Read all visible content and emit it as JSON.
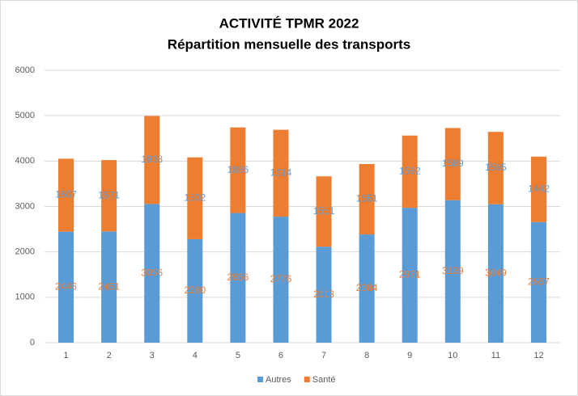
{
  "chart_data": {
    "type": "stacked_bar",
    "title": [
      "ACTIVITÉ TPMR 2022",
      "Répartition mensuelle des transports"
    ],
    "categories": [
      "1",
      "2",
      "3",
      "4",
      "5",
      "6",
      "7",
      "8",
      "9",
      "10",
      "11",
      "12"
    ],
    "series": [
      {
        "name": "Autres",
        "color": "#5b9bd5",
        "values": [
          2446,
          2451,
          3056,
          2280,
          2856,
          2776,
          2113,
          2384,
          2971,
          3139,
          3049,
          2657
        ]
      },
      {
        "name": "Santé",
        "color": "#ed7d31",
        "values": [
          1607,
          1571,
          1938,
          1802,
          1886,
          1914,
          1551,
          1551,
          1592,
          1589,
          1595,
          1442
        ]
      }
    ],
    "ylim": [
      0,
      6000
    ],
    "yticks": [
      0,
      1000,
      2000,
      3000,
      4000,
      5000,
      6000
    ],
    "grid": true,
    "legend": "bottom"
  }
}
